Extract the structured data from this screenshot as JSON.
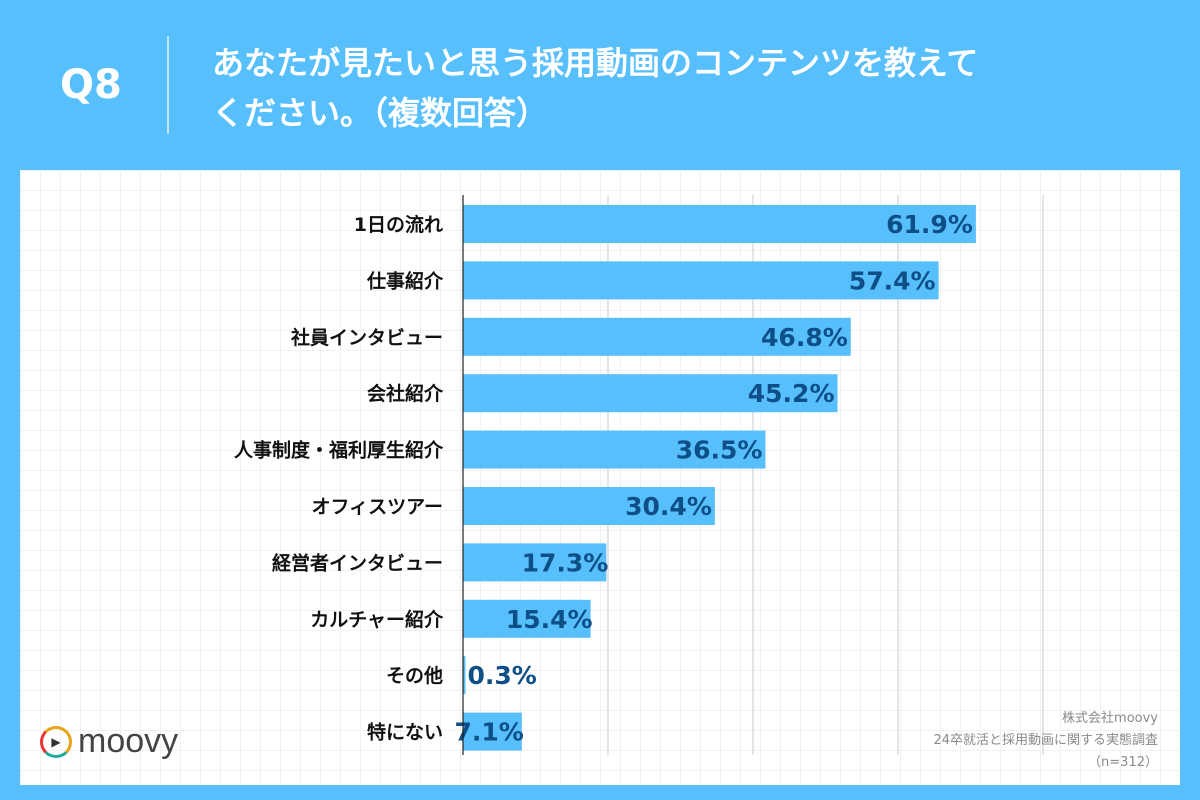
{
  "header": {
    "question_no": "Q8",
    "title_line1": "あなたが見たいと思う採用動画のコンテンツを教えて",
    "title_line2": "ください。（複数回答）"
  },
  "colors": {
    "background": "#57bffc",
    "bar": "#57bffc",
    "value_label": "#0d4f86"
  },
  "chart_data": {
    "type": "bar",
    "orientation": "horizontal",
    "categories": [
      "1日の流れ",
      "仕事紹介",
      "社員インタビュー",
      "会社紹介",
      "人事制度・福利厚生紹介",
      "オフィスツアー",
      "経営者インタビュー",
      "カルチャー紹介",
      "その他",
      "特にない"
    ],
    "values": [
      61.9,
      57.4,
      46.8,
      45.2,
      36.5,
      30.4,
      17.3,
      15.4,
      0.3,
      7.1
    ],
    "value_labels": [
      "61.9%",
      "57.4%",
      "46.8%",
      "45.2%",
      "36.5%",
      "30.4%",
      "17.3%",
      "15.4%",
      "0.3%",
      "7.1%"
    ],
    "xlim": [
      0,
      70
    ],
    "grid": true,
    "unit": "%"
  },
  "source": {
    "company": "株式会社moovy",
    "survey": "24卒就活と採用動画に関する実態調査",
    "n": "（n=312）"
  },
  "logo": {
    "text": "moovy",
    "icon": "play-icon"
  }
}
